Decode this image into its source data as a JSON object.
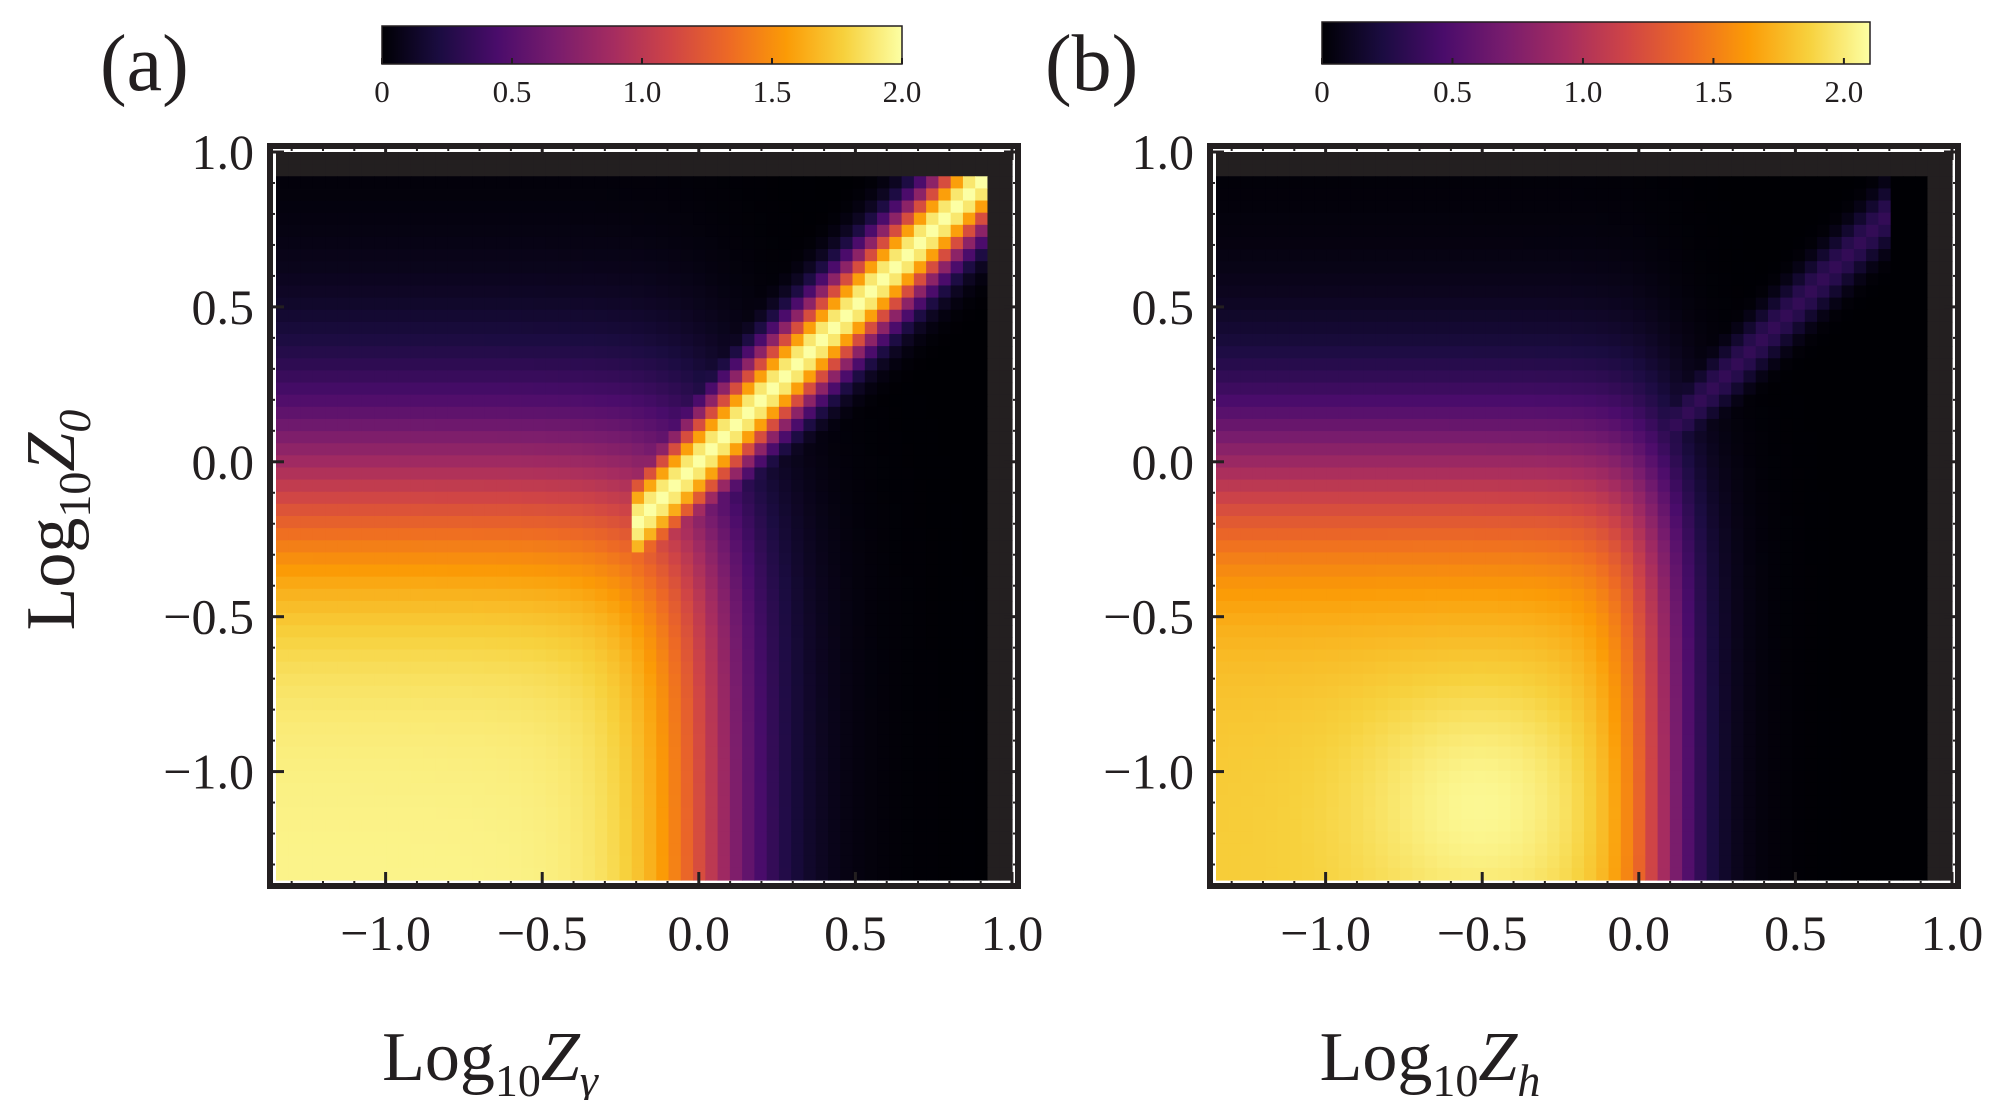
{
  "figure": {
    "colorscale": {
      "name": "inferno",
      "stops": [
        "#000004",
        "#1b0c41",
        "#4a0c6b",
        "#781c6d",
        "#a52c60",
        "#cf4446",
        "#ed6925",
        "#fb9b06",
        "#f7d13d",
        "#fcffa4"
      ]
    }
  },
  "chart_data": [
    {
      "type": "heatmap",
      "panel_label": "(a)",
      "xlabel_base": "Log",
      "xlabel_sub": "10",
      "xlabel_var": "Z",
      "xlabel_var_sub": "γ",
      "ylabel_base": "Log",
      "ylabel_sub": "10",
      "ylabel_var": "Z",
      "ylabel_var_sub": "0",
      "xlim": [
        -1.35,
        1.0
      ],
      "ylim": [
        -1.35,
        1.0
      ],
      "xticks": [
        -1.0,
        -0.5,
        0.0,
        0.5,
        1.0
      ],
      "xtick_labels": [
        "−1.0",
        "−0.5",
        "0.0",
        "0.5",
        "1.0"
      ],
      "yticks": [
        -1.0,
        -0.5,
        0.0,
        0.5,
        1.0
      ],
      "ytick_labels": [
        "−1.0",
        "−0.5",
        "0.0",
        "0.5",
        "1.0"
      ],
      "colorbar": {
        "range": [
          0,
          2.0
        ],
        "ticks": [
          0,
          0.5,
          1.0,
          1.5,
          2.0
        ],
        "tick_labels": [
          "0",
          "0.5",
          "1.0",
          "1.5",
          "2.0"
        ]
      },
      "features": {
        "bright_diagonal_ridge": "along x = y, value ~2.0",
        "max_value_lower_left": 2.0,
        "dark_region_right_and_top": 0.0,
        "grey_masked_border": "top rows above y≈0.92 and right columns beyond x≈0.9"
      }
    },
    {
      "type": "heatmap",
      "panel_label": "(b)",
      "xlabel_base": "Log",
      "xlabel_sub": "10",
      "xlabel_var": "Z",
      "xlabel_var_sub": "h",
      "xlim": [
        -1.35,
        1.0
      ],
      "ylim": [
        -1.35,
        1.0
      ],
      "xticks": [
        -1.0,
        -0.5,
        0.0,
        0.5,
        1.0
      ],
      "xtick_labels": [
        "−1.0",
        "−0.5",
        "0.0",
        "0.5",
        "1.0"
      ],
      "yticks": [
        -1.0,
        -0.5,
        0.0,
        0.5,
        1.0
      ],
      "ytick_labels": [
        "−1.0",
        "−0.5",
        "0.0",
        "0.5",
        "1.0"
      ],
      "colorbar": {
        "range": [
          0,
          2.1
        ],
        "ticks": [
          0,
          0.5,
          1.0,
          1.5,
          2.0
        ],
        "tick_labels": [
          "0",
          "0.5",
          "1.0",
          "1.5",
          "2.0"
        ]
      },
      "features": {
        "bright_region": "lower-left block x < 0, y < 0, value ~2.0",
        "weak_diagonal_ridge": "faint along x = y for x > 0",
        "dark_region_right_and_top": 0.0,
        "grey_masked_border": "top rows above y≈0.92 and right columns beyond x≈0.9"
      }
    }
  ]
}
